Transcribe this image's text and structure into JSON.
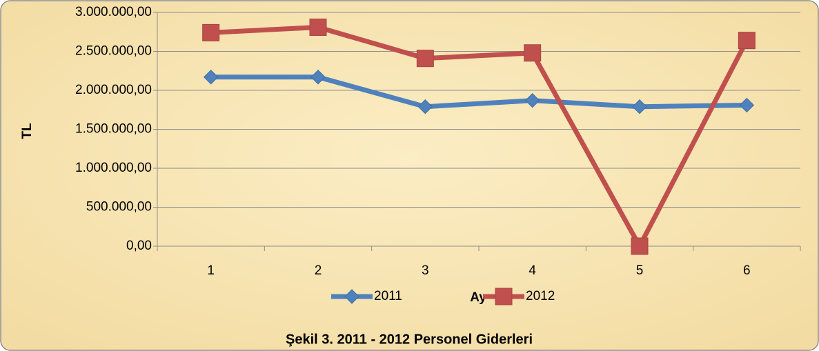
{
  "chart_data": {
    "type": "line",
    "title": "Şekil 3. 2011 - 2012 Personel Giderleri",
    "x_label": "Ay",
    "y_label": "TL",
    "categories": [
      "1",
      "2",
      "3",
      "4",
      "5",
      "6"
    ],
    "series": [
      {
        "name": "2011",
        "color": "#4f81bd",
        "marker": "diamond",
        "values": [
          2170000,
          2170000,
          1790000,
          1870000,
          1790000,
          1810000
        ]
      },
      {
        "name": "2012",
        "color": "#c0504d",
        "marker": "square",
        "values": [
          2740000,
          2810000,
          2410000,
          2480000,
          0,
          2640000
        ]
      }
    ],
    "ylim": [
      0,
      3000000
    ],
    "yticks": [
      {
        "value": 0,
        "label": "0,00"
      },
      {
        "value": 500000,
        "label": "500.000,00"
      },
      {
        "value": 1000000,
        "label": "1.000.000,00"
      },
      {
        "value": 1500000,
        "label": "1.500.000,00"
      },
      {
        "value": 2000000,
        "label": "2.000.000,00"
      },
      {
        "value": 2500000,
        "label": "2.500.000,00"
      },
      {
        "value": 3000000,
        "label": "3.000.000,00"
      }
    ],
    "grid": true,
    "legend": "bottom"
  }
}
